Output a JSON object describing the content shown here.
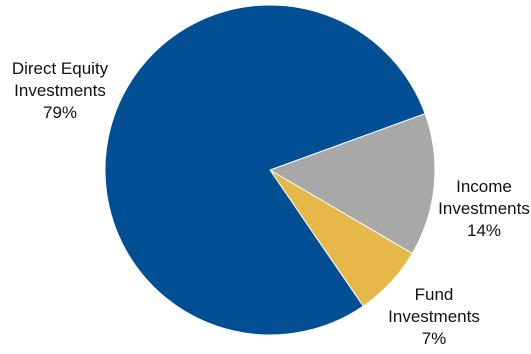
{
  "chart_data": {
    "type": "pie",
    "title": "",
    "slices": [
      {
        "label_lines": [
          "Direct Equity",
          "Investments"
        ],
        "value": 79,
        "value_label": "79%",
        "color": "#004e94"
      },
      {
        "label_lines": [
          "Income",
          "Investments"
        ],
        "value": 14,
        "value_label": "14%",
        "color": "#a8a8a8"
      },
      {
        "label_lines": [
          "Fund",
          "Investments"
        ],
        "value": 7,
        "value_label": "7%",
        "color": "#e6b84a"
      }
    ],
    "legend": "none",
    "labels_position": "outside"
  }
}
